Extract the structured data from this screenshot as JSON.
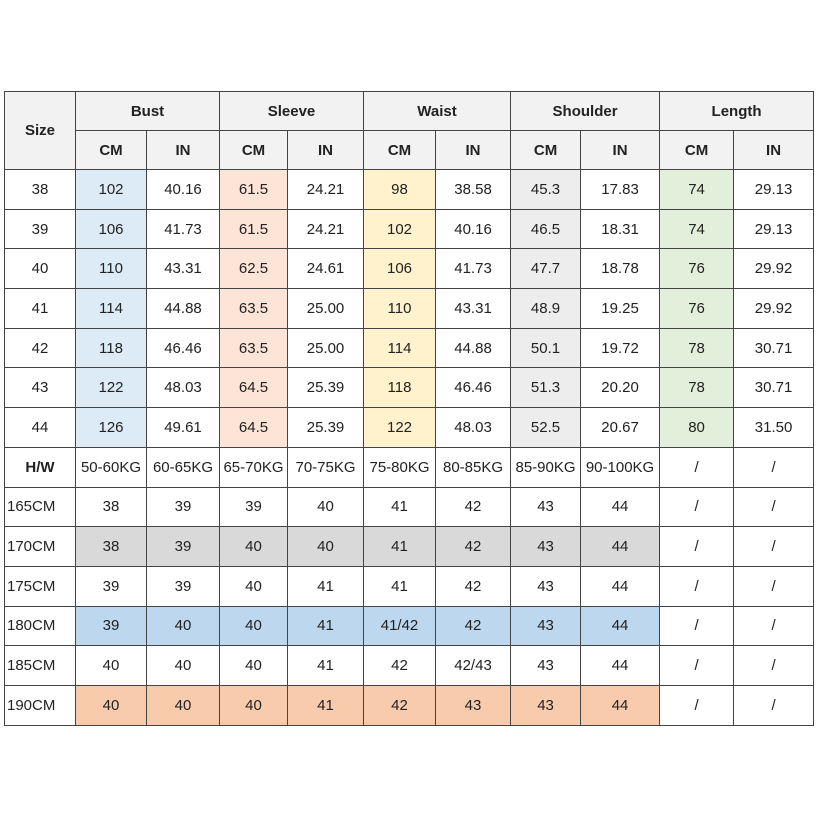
{
  "table": {
    "header1": [
      "Size",
      "Bust",
      "Sleeve",
      "Waist",
      "Shoulder",
      "Length"
    ],
    "header2": [
      "CM",
      "IN",
      "CM",
      "IN",
      "CM",
      "IN",
      "CM",
      "IN",
      "CM",
      "IN"
    ],
    "rows": [
      [
        "38",
        "102",
        "40.16",
        "61.5",
        "24.21",
        "98",
        "38.58",
        "45.3",
        "17.83",
        "74",
        "29.13"
      ],
      [
        "39",
        "106",
        "41.73",
        "61.5",
        "24.21",
        "102",
        "40.16",
        "46.5",
        "18.31",
        "74",
        "29.13"
      ],
      [
        "40",
        "110",
        "43.31",
        "62.5",
        "24.61",
        "106",
        "41.73",
        "47.7",
        "18.78",
        "76",
        "29.92"
      ],
      [
        "41",
        "114",
        "44.88",
        "63.5",
        "25.00",
        "110",
        "43.31",
        "48.9",
        "19.25",
        "76",
        "29.92"
      ],
      [
        "42",
        "118",
        "46.46",
        "63.5",
        "25.00",
        "114",
        "44.88",
        "50.1",
        "19.72",
        "78",
        "30.71"
      ],
      [
        "43",
        "122",
        "48.03",
        "64.5",
        "25.39",
        "118",
        "46.46",
        "51.3",
        "20.20",
        "78",
        "30.71"
      ],
      [
        "44",
        "126",
        "49.61",
        "64.5",
        "25.39",
        "122",
        "48.03",
        "52.5",
        "20.67",
        "80",
        "31.50"
      ],
      [
        "H/W",
        "50-60KG",
        "60-65KG",
        "65-70KG",
        "70-75KG",
        "75-80KG",
        "80-85KG",
        "85-90KG",
        "90-100KG",
        "/",
        "/"
      ],
      [
        "165CM",
        "38",
        "39",
        "39",
        "40",
        "41",
        "42",
        "43",
        "44",
        "/",
        "/"
      ],
      [
        "170CM",
        "38",
        "39",
        "40",
        "40",
        "41",
        "42",
        "43",
        "44",
        "/",
        "/"
      ],
      [
        "175CM",
        "39",
        "39",
        "40",
        "41",
        "41",
        "42",
        "43",
        "44",
        "/",
        "/"
      ],
      [
        "180CM",
        "39",
        "40",
        "40",
        "41",
        "41/42",
        "42",
        "43",
        "44",
        "/",
        "/"
      ],
      [
        "185CM",
        "40",
        "40",
        "40",
        "41",
        "42",
        "42/43",
        "43",
        "44",
        "/",
        "/"
      ],
      [
        "190CM",
        "40",
        "40",
        "40",
        "41",
        "42",
        "43",
        "43",
        "44",
        "/",
        "/"
      ]
    ]
  }
}
